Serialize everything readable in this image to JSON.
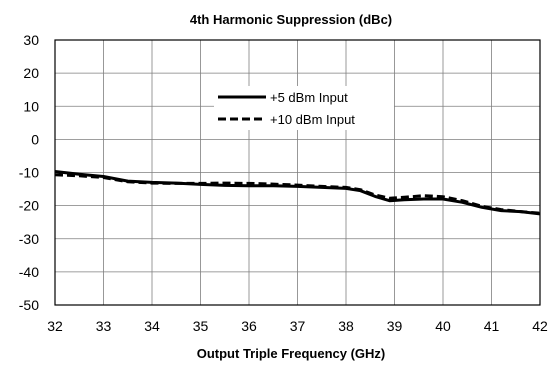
{
  "chart_data": {
    "type": "line",
    "title": "4th Harmonic Suppression (dBc)",
    "xlabel": "Output Triple Frequency (GHz)",
    "ylabel": "",
    "xlim": [
      32,
      42
    ],
    "ylim": [
      -50,
      30
    ],
    "x_ticks": [
      32,
      33,
      34,
      35,
      36,
      37,
      38,
      39,
      40,
      41,
      42
    ],
    "y_ticks": [
      30,
      20,
      10,
      0,
      -10,
      -20,
      -30,
      -40,
      -50
    ],
    "grid": true,
    "legend_position": "center",
    "series": [
      {
        "name": "+5 dBm Input",
        "style": "solid",
        "color": "#000000",
        "x": [
          32,
          32.5,
          33,
          33.5,
          34,
          34.5,
          35,
          35.5,
          36,
          36.5,
          37,
          37.5,
          38,
          38.3,
          38.6,
          38.9,
          39.2,
          39.6,
          40,
          40.4,
          40.8,
          41.2,
          41.6,
          42
        ],
        "y": [
          -9.7,
          -10.5,
          -11.2,
          -12.6,
          -13.0,
          -13.2,
          -13.6,
          -13.9,
          -14.0,
          -14.0,
          -14.2,
          -14.5,
          -14.8,
          -15.5,
          -17.2,
          -18.5,
          -18.2,
          -18.0,
          -18.0,
          -19.0,
          -20.5,
          -21.5,
          -21.8,
          -22.5
        ]
      },
      {
        "name": "+10 dBm Input",
        "style": "dashed",
        "color": "#000000",
        "x": [
          32,
          32.5,
          33,
          33.5,
          34,
          34.5,
          35,
          35.5,
          36,
          36.5,
          37,
          37.5,
          38,
          38.3,
          38.6,
          38.9,
          39.2,
          39.6,
          40,
          40.4,
          40.8,
          41.2,
          41.6,
          42
        ],
        "y": [
          -10.7,
          -11.0,
          -11.5,
          -12.8,
          -13.2,
          -13.3,
          -13.3,
          -13.2,
          -13.3,
          -13.5,
          -13.8,
          -14.2,
          -14.5,
          -15.2,
          -16.8,
          -17.8,
          -17.5,
          -17.0,
          -17.3,
          -18.5,
          -20.2,
          -21.2,
          -21.8,
          -22.3
        ]
      }
    ]
  }
}
